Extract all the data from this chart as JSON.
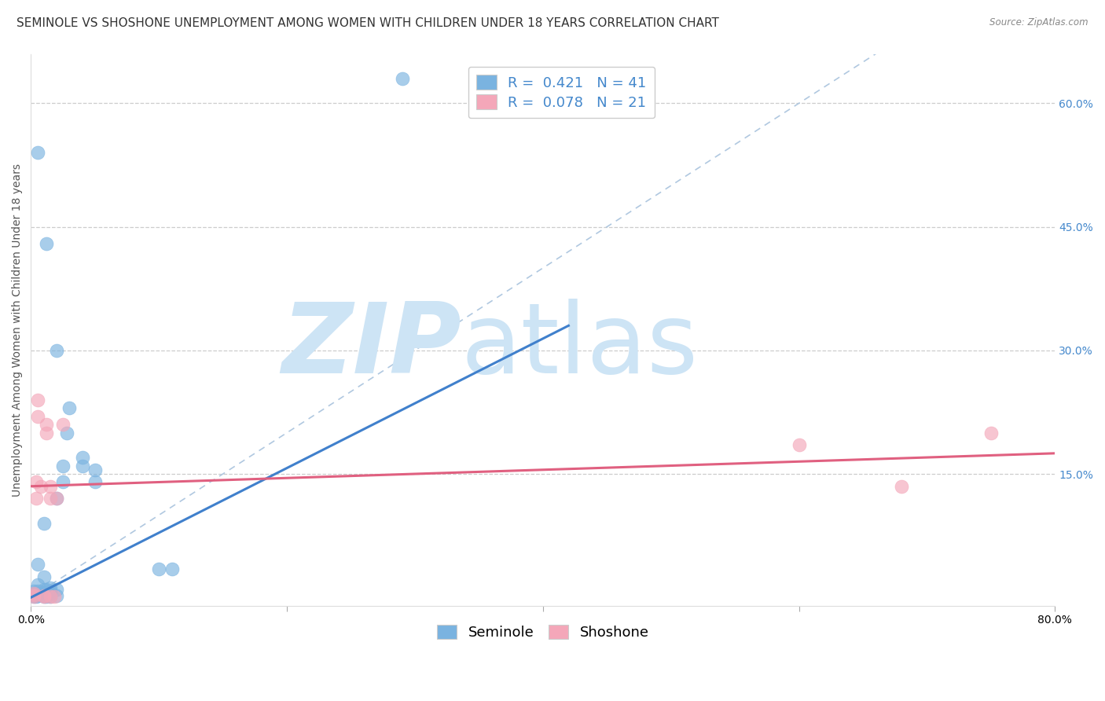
{
  "title": "SEMINOLE VS SHOSHONE UNEMPLOYMENT AMONG WOMEN WITH CHILDREN UNDER 18 YEARS CORRELATION CHART",
  "source": "Source: ZipAtlas.com",
  "ylabel": "Unemployment Among Women with Children Under 18 years",
  "xlim": [
    0.0,
    0.8
  ],
  "ylim": [
    -0.01,
    0.66
  ],
  "ytick_labels_right": [
    "60.0%",
    "45.0%",
    "30.0%",
    "15.0%"
  ],
  "ytick_vals_right": [
    0.6,
    0.45,
    0.3,
    0.15
  ],
  "R_seminole": 0.421,
  "N_seminole": 41,
  "R_shoshone": 0.078,
  "N_shoshone": 21,
  "seminole_color": "#7ab3e0",
  "shoshone_color": "#f4a7b9",
  "seminole_points": [
    [
      0.002,
      0.001
    ],
    [
      0.002,
      0.003
    ],
    [
      0.002,
      0.005
    ],
    [
      0.002,
      0.008
    ],
    [
      0.004,
      0.001
    ],
    [
      0.004,
      0.003
    ],
    [
      0.004,
      0.005
    ],
    [
      0.005,
      0.002
    ],
    [
      0.005,
      0.008
    ],
    [
      0.005,
      0.015
    ],
    [
      0.005,
      0.04
    ],
    [
      0.01,
      0.001
    ],
    [
      0.01,
      0.003
    ],
    [
      0.01,
      0.006
    ],
    [
      0.01,
      0.01
    ],
    [
      0.01,
      0.025
    ],
    [
      0.01,
      0.09
    ],
    [
      0.012,
      0.001
    ],
    [
      0.012,
      0.005
    ],
    [
      0.012,
      0.01
    ],
    [
      0.015,
      0.001
    ],
    [
      0.015,
      0.005
    ],
    [
      0.015,
      0.008
    ],
    [
      0.015,
      0.012
    ],
    [
      0.02,
      0.002
    ],
    [
      0.02,
      0.01
    ],
    [
      0.02,
      0.12
    ],
    [
      0.025,
      0.14
    ],
    [
      0.025,
      0.16
    ],
    [
      0.028,
      0.2
    ],
    [
      0.03,
      0.23
    ],
    [
      0.04,
      0.16
    ],
    [
      0.04,
      0.17
    ],
    [
      0.05,
      0.14
    ],
    [
      0.05,
      0.155
    ],
    [
      0.02,
      0.3
    ],
    [
      0.005,
      0.54
    ],
    [
      0.012,
      0.43
    ],
    [
      0.29,
      0.63
    ],
    [
      0.1,
      0.035
    ],
    [
      0.11,
      0.035
    ]
  ],
  "shoshone_points": [
    [
      0.002,
      0.001
    ],
    [
      0.002,
      0.003
    ],
    [
      0.002,
      0.005
    ],
    [
      0.004,
      0.12
    ],
    [
      0.004,
      0.14
    ],
    [
      0.005,
      0.22
    ],
    [
      0.005,
      0.24
    ],
    [
      0.008,
      0.135
    ],
    [
      0.01,
      0.001
    ],
    [
      0.01,
      0.002
    ],
    [
      0.012,
      0.2
    ],
    [
      0.012,
      0.21
    ],
    [
      0.015,
      0.12
    ],
    [
      0.015,
      0.135
    ],
    [
      0.018,
      0.001
    ],
    [
      0.02,
      0.12
    ],
    [
      0.025,
      0.21
    ],
    [
      0.6,
      0.185
    ],
    [
      0.68,
      0.135
    ],
    [
      0.75,
      0.2
    ],
    [
      0.015,
      0.001
    ]
  ],
  "seminole_trendline": [
    [
      0.0,
      0.0
    ],
    [
      0.42,
      0.33
    ]
  ],
  "shoshone_trendline": [
    [
      0.0,
      0.135
    ],
    [
      0.8,
      0.175
    ]
  ],
  "diagonal_line": [
    [
      0.0,
      0.0
    ],
    [
      0.66,
      0.66
    ]
  ],
  "watermark_zip": "ZIP",
  "watermark_atlas": "atlas",
  "watermark_color": "#cde4f5",
  "grid_color": "#cccccc",
  "grid_style": "--",
  "background_color": "#ffffff",
  "title_fontsize": 11,
  "label_fontsize": 10,
  "tick_fontsize": 10,
  "legend_fontsize": 13
}
